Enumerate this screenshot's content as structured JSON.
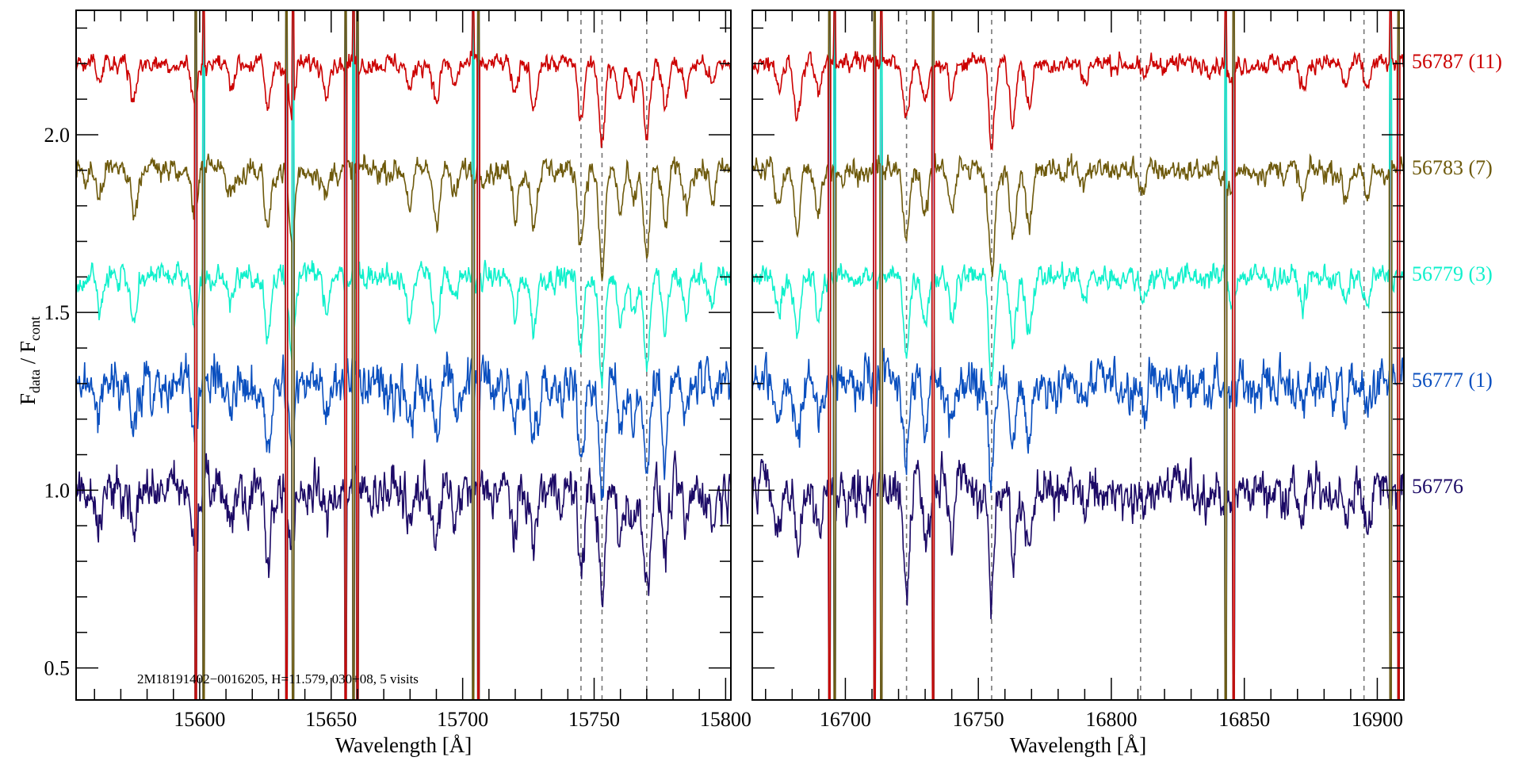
{
  "chart_data": {
    "type": "line",
    "ylabel_main": "F",
    "ylabel_sub1": "data",
    "ylabel_sep": " / F",
    "ylabel_sub2": "cont",
    "annotation": "2M18191402−0016205,    H=11.579,    030+08,    5 visits",
    "ylim": [
      0.41,
      2.35
    ],
    "yticks": [
      0.5,
      1.0,
      1.5,
      2.0
    ],
    "ytick_labels": [
      "0.5",
      "1.0",
      "1.5",
      "2.0"
    ],
    "grid": false,
    "panels": [
      {
        "xlabel": "Wavelength [Å]",
        "xlim": [
          15553,
          15802
        ],
        "xticks": [
          15600,
          15650,
          15700,
          15750,
          15800
        ],
        "xtick_labels": [
          "15600",
          "15650",
          "15700",
          "15750",
          "15800"
        ],
        "dashed_lines": [
          15745,
          15753,
          15770
        ],
        "absorption_lines": [
          [
            15562,
            0.08
          ],
          [
            15575,
            0.12
          ],
          [
            15598,
            0.14
          ],
          [
            15612,
            0.07
          ],
          [
            15626,
            0.16
          ],
          [
            15635,
            0.2
          ],
          [
            15648,
            0.08
          ],
          [
            15680,
            0.1
          ],
          [
            15690,
            0.14
          ],
          [
            15697,
            0.08
          ],
          [
            15720,
            0.12
          ],
          [
            15727,
            0.15
          ],
          [
            15745,
            0.2
          ],
          [
            15753,
            0.3
          ],
          [
            15760,
            0.12
          ],
          [
            15765,
            0.1
          ],
          [
            15770,
            0.25
          ],
          [
            15777,
            0.16
          ],
          [
            15785,
            0.1
          ],
          [
            15795,
            0.08
          ]
        ],
        "sky_residuals": [
          15598.5,
          15601.5,
          15633,
          15635.5,
          15655.5,
          15658.5,
          15660,
          15704,
          15706
        ]
      },
      {
        "xlabel": "Wavelength [Å]",
        "xlim": [
          16665,
          16910
        ],
        "xticks": [
          16700,
          16750,
          16800,
          16850,
          16900
        ],
        "xtick_labels": [
          "16700",
          "16750",
          "16800",
          "16850",
          "16900"
        ],
        "dashed_lines": [
          16723,
          16755,
          16811,
          16895
        ],
        "absorption_lines": [
          [
            16675,
            0.1
          ],
          [
            16682,
            0.18
          ],
          [
            16690,
            0.12
          ],
          [
            16723,
            0.2
          ],
          [
            16730,
            0.12
          ],
          [
            16740,
            0.1
          ],
          [
            16755,
            0.28
          ],
          [
            16763,
            0.2
          ],
          [
            16769,
            0.15
          ],
          [
            16790,
            0.06
          ],
          [
            16812,
            0.06
          ],
          [
            16845,
            0.07
          ],
          [
            16872,
            0.08
          ],
          [
            16888,
            0.08
          ],
          [
            16896,
            0.09
          ]
        ],
        "sky_residuals": [
          16694,
          16696,
          16711,
          16713.5,
          16733,
          16843,
          16846,
          16905,
          16908
        ]
      }
    ],
    "series": [
      {
        "name": "56787 (11)",
        "color": "#cc0000",
        "offset": 1.2,
        "noise": 0.02,
        "depth_scale": 0.8
      },
      {
        "name": "56783 (7)",
        "color": "#6e5a0c",
        "offset": 0.9,
        "noise": 0.025,
        "depth_scale": 1.0
      },
      {
        "name": "56779 (3)",
        "color": "#10f0cc",
        "offset": 0.6,
        "noise": 0.025,
        "depth_scale": 1.0
      },
      {
        "name": "56777 (1)",
        "color": "#0a4fbf",
        "offset": 0.3,
        "noise": 0.05,
        "depth_scale": 1.0
      },
      {
        "name": "56776",
        "color": "#1c0a66",
        "offset": 0.0,
        "noise": 0.05,
        "depth_scale": 1.1
      }
    ]
  }
}
